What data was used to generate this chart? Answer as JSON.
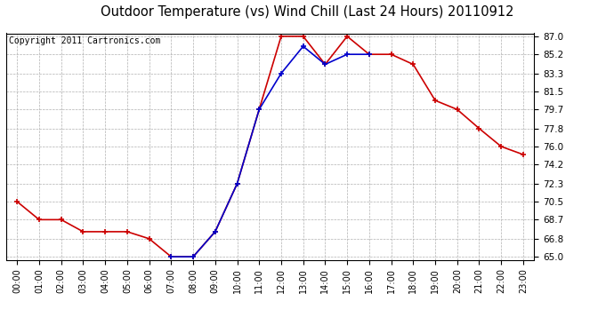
{
  "title": "Outdoor Temperature (vs) Wind Chill (Last 24 Hours) 20110912",
  "copyright_text": "Copyright 2011 Cartronics.com",
  "x_labels": [
    "00:00",
    "01:00",
    "02:00",
    "03:00",
    "04:00",
    "05:00",
    "06:00",
    "07:00",
    "08:00",
    "09:00",
    "10:00",
    "11:00",
    "12:00",
    "13:00",
    "14:00",
    "15:00",
    "16:00",
    "17:00",
    "18:00",
    "19:00",
    "20:00",
    "21:00",
    "22:00",
    "23:00"
  ],
  "temp_data": [
    70.5,
    68.7,
    68.7,
    67.5,
    67.5,
    67.5,
    66.8,
    65.0,
    65.0,
    67.5,
    72.3,
    79.7,
    87.0,
    87.0,
    84.2,
    87.0,
    85.2,
    85.2,
    84.2,
    80.6,
    79.7,
    77.8,
    76.0,
    75.2
  ],
  "windchill_data": [
    null,
    null,
    null,
    null,
    null,
    null,
    null,
    65.0,
    65.0,
    67.5,
    72.3,
    79.7,
    83.3,
    86.0,
    84.2,
    85.2,
    85.2,
    null,
    null,
    null,
    null,
    null,
    null,
    null
  ],
  "temp_color": "#cc0000",
  "windchill_color": "#0000cc",
  "y_min": 65.0,
  "y_max": 87.0,
  "y_ticks": [
    65.0,
    66.8,
    68.7,
    70.5,
    72.3,
    74.2,
    76.0,
    77.8,
    79.7,
    81.5,
    83.3,
    85.2,
    87.0
  ],
  "background_color": "#ffffff",
  "grid_color": "#b0b0b0",
  "title_fontsize": 10.5,
  "copyright_fontsize": 7
}
